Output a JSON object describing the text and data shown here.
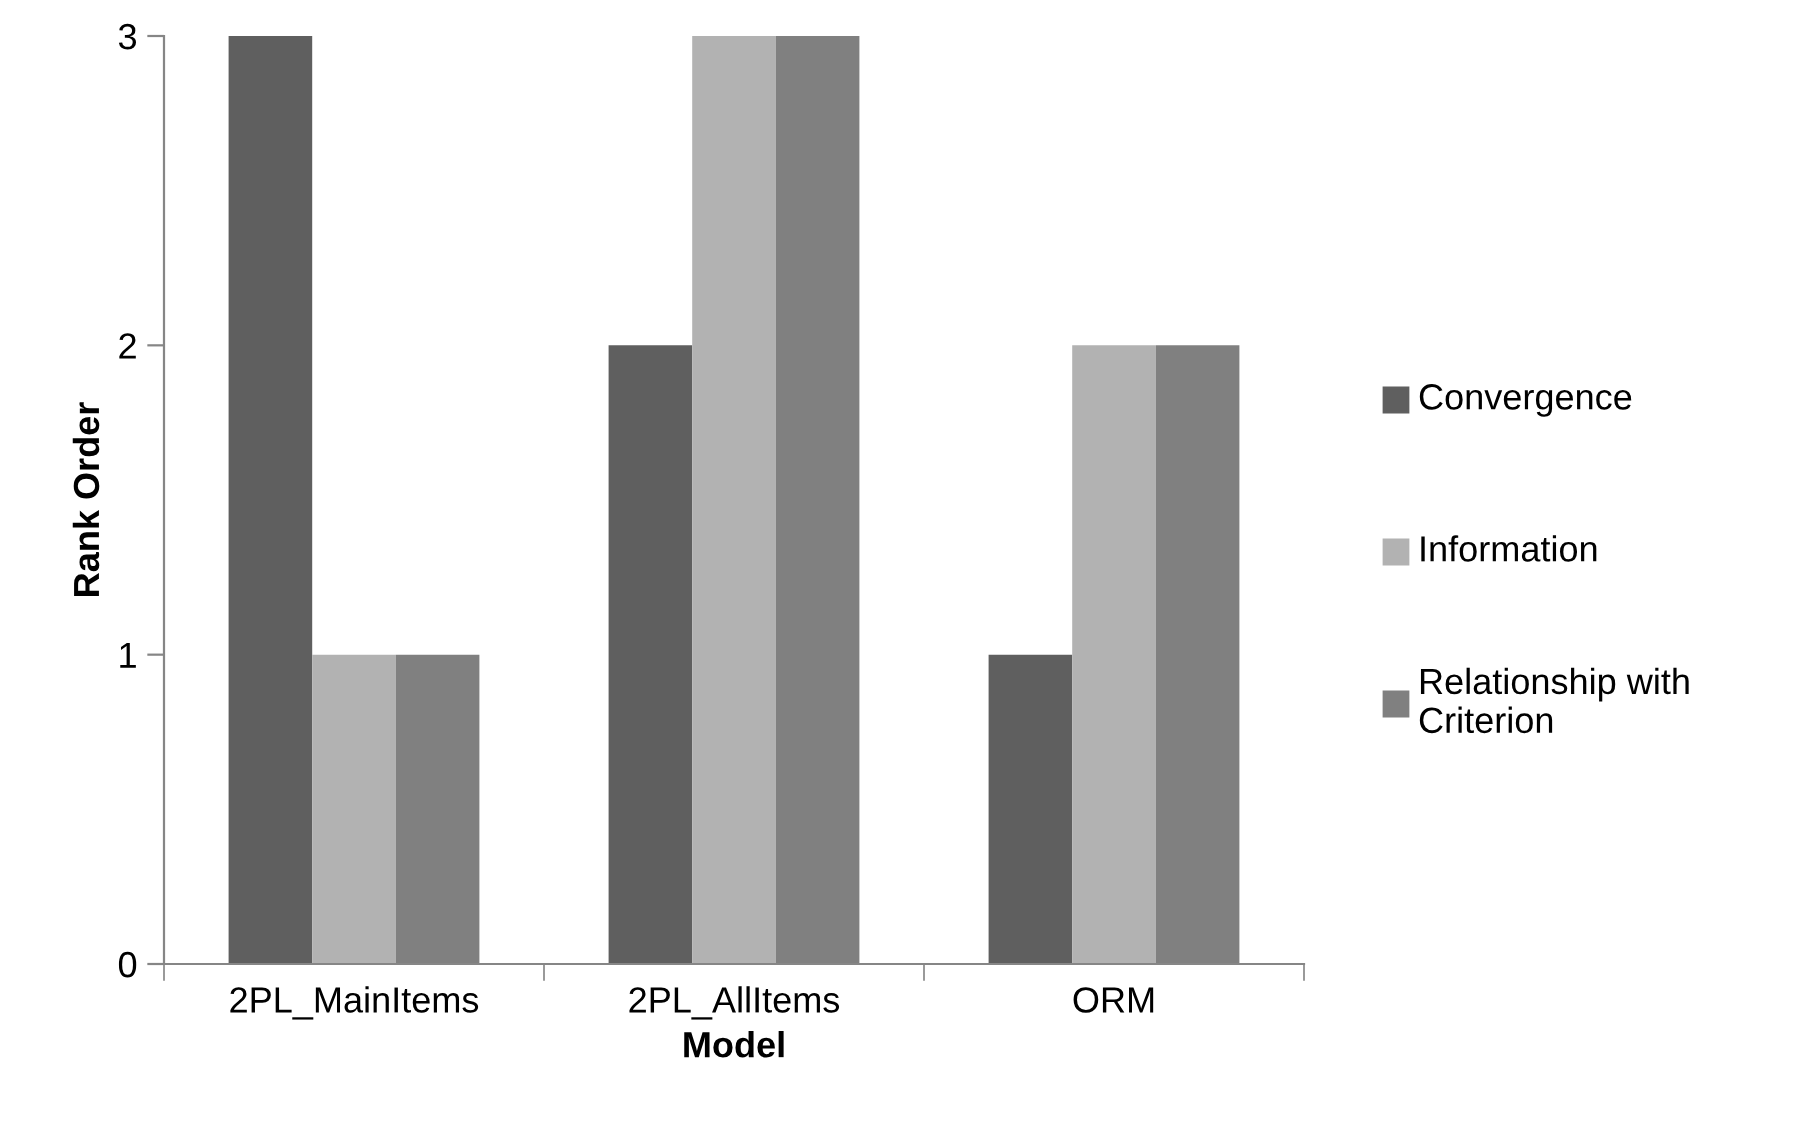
{
  "chart_data": {
    "type": "bar",
    "xlabel": "Model",
    "ylabel": "Rank Order",
    "categories": [
      "2PL_MainItems",
      "2PL_AllItems",
      "ORM"
    ],
    "series": [
      {
        "name": "Convergence",
        "color": "#5f5f5f",
        "values": [
          3,
          2,
          1
        ]
      },
      {
        "name": "Information",
        "color": "#b2b2b2",
        "values": [
          1,
          3,
          2
        ]
      },
      {
        "name": "Relationship with Criterion",
        "color": "#808080",
        "values": [
          1,
          3,
          2
        ]
      }
    ],
    "ylim": [
      0,
      3
    ],
    "yticks": [
      0,
      1,
      2,
      3
    ],
    "grid": false,
    "legend": "right"
  }
}
